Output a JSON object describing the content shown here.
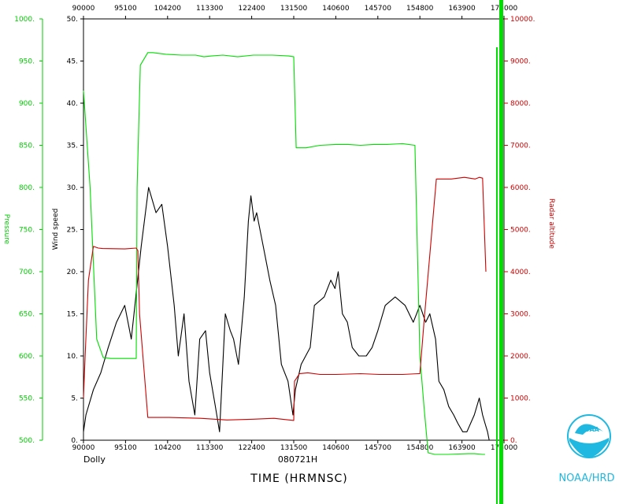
{
  "chart_data": {
    "type": "line",
    "storm_name": "Dolly",
    "date_label": "080721H",
    "xlabel": "TIME (HRMNSC)",
    "x_ticks": [
      "90000",
      "95100",
      "104200",
      "113300",
      "122400",
      "131500",
      "140600",
      "145700",
      "154800",
      "163900",
      "173000"
    ],
    "x_range_seconds": [
      32400,
      63000
    ],
    "wind_axis": {
      "label": "Wind speed",
      "ylim": [
        0,
        50
      ],
      "ticks": [
        "0.",
        "5.",
        "10.",
        "15.",
        "20.",
        "25.",
        "30.",
        "35.",
        "40.",
        "45.",
        "50."
      ]
    },
    "pressure_axis": {
      "label": "Pressure",
      "ylim": [
        500,
        1000
      ],
      "ticks": [
        "500.",
        "550.",
        "600.",
        "650.",
        "700.",
        "750.",
        "800.",
        "850.",
        "900.",
        "950.",
        "1000."
      ]
    },
    "altitude_axis": {
      "label": "Radar altitude",
      "ylim": [
        0,
        10000
      ],
      "ticks": [
        "0.",
        "1000.",
        "2000.",
        "3000.",
        "4000.",
        "5000.",
        "6000.",
        "7000.",
        "8000.",
        "9000.",
        "10000."
      ]
    },
    "series": [
      {
        "key": "wind",
        "color": "#000000",
        "x_hrmnsc": [
          "90000",
          "90300",
          "91200",
          "92100",
          "93000",
          "94000",
          "95000",
          "95800",
          "101000",
          "101900",
          "102800",
          "103500",
          "104200",
          "105000",
          "105500",
          "110200",
          "110800",
          "111500",
          "112100",
          "112800",
          "113300",
          "114000",
          "114500",
          "115200",
          "115800",
          "120200",
          "120800",
          "121500",
          "122000",
          "122300",
          "122700",
          "123000",
          "123600",
          "124000",
          "124600",
          "125300",
          "130000",
          "130800",
          "131400",
          "131700",
          "132400",
          "133500",
          "134000",
          "135200",
          "140000",
          "140500",
          "140900",
          "141400",
          "142000",
          "142600",
          "143400",
          "144300",
          "145000",
          "145700",
          "150600",
          "151800",
          "153000",
          "154000",
          "154800",
          "155500",
          "160000",
          "160700",
          "161100",
          "161700",
          "162300",
          "162900",
          "163400",
          "164000",
          "164500",
          "165400",
          "170000",
          "170400",
          "170700",
          "171000",
          "171200"
        ],
        "values": [
          1,
          3,
          6,
          8,
          11,
          14,
          16,
          12,
          23,
          30,
          27,
          28,
          23,
          16,
          10,
          15,
          7,
          3,
          12,
          13,
          8,
          4,
          1,
          15,
          13,
          12,
          9,
          17,
          26,
          29,
          26,
          27,
          24,
          22,
          19,
          16,
          9,
          7,
          3,
          6,
          9,
          11,
          16,
          17,
          19,
          18,
          20,
          15,
          14,
          11,
          10,
          10,
          11,
          13,
          16,
          17,
          16,
          14,
          16,
          14,
          15,
          12,
          7,
          6,
          4,
          3,
          2,
          1,
          1,
          3,
          5,
          3,
          2,
          1,
          0
        ]
      },
      {
        "key": "pressure",
        "color": "#00dd00",
        "x_hrmnsc": [
          "90000",
          "90800",
          "91600",
          "92400",
          "93300",
          "94800",
          "100400",
          "100500",
          "100900",
          "101800",
          "102400",
          "104000",
          "105900",
          "111600",
          "112600",
          "113500",
          "114900",
          "120700",
          "122600",
          "124900",
          "130900",
          "131500",
          "131600",
          "131800",
          "133000",
          "134700",
          "140600",
          "142100",
          "143600",
          "145200",
          "150800",
          "152700",
          "154200",
          "154800",
          "155300",
          "155800",
          "160600",
          "162200",
          "164700",
          "165400",
          "170400",
          "170700"
        ],
        "values": [
          915,
          800,
          620,
          598,
          597,
          597,
          597,
          800,
          945,
          960,
          960,
          958,
          957,
          957,
          955,
          956,
          957,
          955,
          957,
          957,
          956,
          955,
          920,
          847,
          847,
          850,
          851,
          851,
          850,
          851,
          851,
          852,
          850,
          600,
          540,
          485,
          483,
          483,
          484,
          484,
          482,
          482
        ]
      },
      {
        "key": "radar_altitude",
        "color": "#cc0000",
        "x_hrmnsc": [
          "90000",
          "90200",
          "90600",
          "91200",
          "91800",
          "92300",
          "95000",
          "100400",
          "100600",
          "100800",
          "101800",
          "104400",
          "112200",
          "115400",
          "122600",
          "125100",
          "131500",
          "131600",
          "132200",
          "133200",
          "134700",
          "140600",
          "143600",
          "145900",
          "152700",
          "154600",
          "154800",
          "155300",
          "160800",
          "162600",
          "164200",
          "165500",
          "170000",
          "170400",
          "170800"
        ],
        "values": [
          1000,
          2000,
          3800,
          4600,
          4560,
          4550,
          4540,
          4560,
          4500,
          3000,
          540,
          540,
          520,
          480,
          500,
          520,
          470,
          1400,
          1580,
          1600,
          1560,
          1560,
          1580,
          1560,
          1560,
          1580,
          1580,
          2800,
          6200,
          6200,
          6240,
          6200,
          6240,
          6220,
          4000
        ]
      }
    ]
  },
  "logo": {
    "caption": "NOAA/HRD",
    "emblem_text": "NOAA"
  }
}
